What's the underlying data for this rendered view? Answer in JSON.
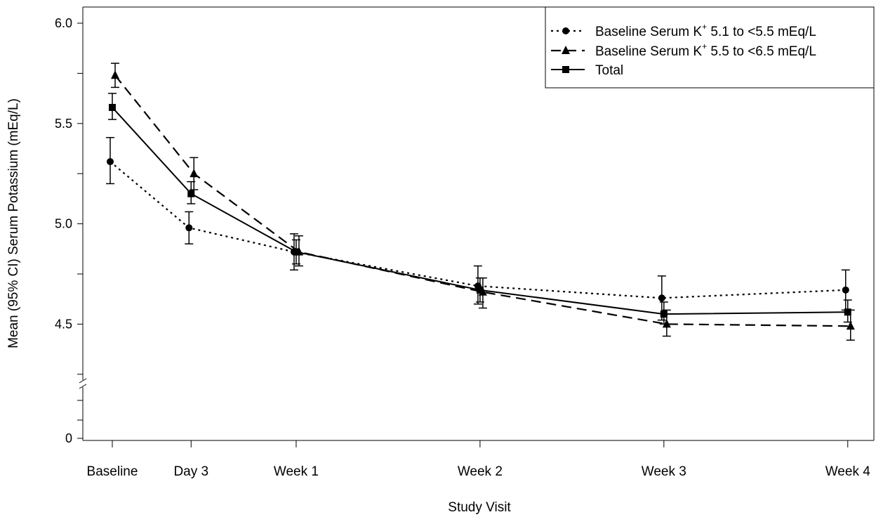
{
  "chart_data": {
    "type": "line",
    "xlabel": "Study Visit",
    "ylabel": "Mean (95% CI) Serum Potassium (mEq/L)",
    "categories": [
      "Baseline",
      "Day 3",
      "Week 1",
      "Week 2",
      "Week 3",
      "Week 4"
    ],
    "x_days": [
      0,
      3,
      7,
      14,
      21,
      28
    ],
    "yticks": [
      "0",
      "4.5",
      "5.0",
      "5.5",
      "6.0"
    ],
    "ylim": [
      4.0,
      6.0
    ],
    "axis_break": true,
    "legend_position": "top-right",
    "series": [
      {
        "name": "Baseline Serum K+ 5.1 to <5.5 mEq/L",
        "name_prefix": "Baseline Serum K",
        "name_sup": "+",
        "name_suffix": " 5.1 to <5.5 mEq/L",
        "marker": "circle",
        "line": "dotted",
        "values": [
          5.31,
          4.98,
          4.86,
          4.69,
          4.63,
          4.67
        ],
        "ci_low": [
          5.2,
          4.9,
          4.77,
          4.6,
          4.52,
          4.57
        ],
        "ci_high": [
          5.43,
          5.06,
          4.95,
          4.79,
          4.74,
          4.77
        ]
      },
      {
        "name": "Baseline Serum K+ 5.5 to <6.5 mEq/L",
        "name_prefix": "Baseline Serum K",
        "name_sup": "+",
        "name_suffix": " 5.5 to <6.5 mEq/L",
        "marker": "triangle",
        "line": "dashed",
        "values": [
          5.74,
          5.25,
          4.86,
          4.66,
          4.5,
          4.49
        ],
        "ci_low": [
          5.68,
          5.17,
          4.79,
          4.58,
          4.44,
          4.42
        ],
        "ci_high": [
          5.8,
          5.33,
          4.94,
          4.73,
          4.57,
          4.57
        ]
      },
      {
        "name": "Total",
        "name_prefix": "Total",
        "name_sup": "",
        "name_suffix": "",
        "marker": "square",
        "line": "solid",
        "values": [
          5.58,
          5.15,
          4.86,
          4.67,
          4.55,
          4.56
        ],
        "ci_low": [
          5.52,
          5.1,
          4.8,
          4.61,
          4.5,
          4.51
        ],
        "ci_high": [
          5.65,
          5.21,
          4.92,
          4.73,
          4.61,
          4.62
        ]
      }
    ]
  }
}
